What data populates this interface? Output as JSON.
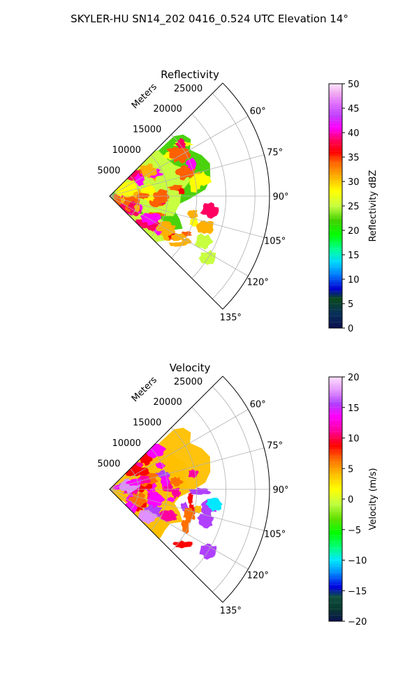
{
  "figure": {
    "suptitle": "SKYLER-HU  SN14_202  0416_0.524 UTC Elevation 14°"
  },
  "chart_data": [
    {
      "type": "heatmap",
      "projection": "polar-sector",
      "title": "Reflectivity",
      "range_label": "Meters",
      "range_ticks": [
        5000,
        10000,
        15000,
        20000,
        25000
      ],
      "range_max": 27500,
      "azimuth_range_deg": [
        45,
        135
      ],
      "azimuth_ticks": [
        "60°",
        "75°",
        "90°",
        "105°",
        "120°",
        "135°"
      ],
      "azimuth_tick_values": [
        60,
        75,
        90,
        105,
        120,
        135
      ],
      "grid": true,
      "colorbar": {
        "label": "Reflectivity dBZ",
        "min": 0,
        "max": 50,
        "ticks": [
          0,
          5,
          10,
          15,
          20,
          25,
          30,
          35,
          40,
          45,
          50
        ],
        "levels": 40,
        "colormap": "pyart_HomeyerRainbow-like",
        "stops": [
          [
            0,
            "#0a1050"
          ],
          [
            0.06,
            "#08305a"
          ],
          [
            0.12,
            "#0a4a1a"
          ],
          [
            0.16,
            "#0000d0"
          ],
          [
            0.22,
            "#0080ff"
          ],
          [
            0.27,
            "#00d8ff"
          ],
          [
            0.32,
            "#00ff99"
          ],
          [
            0.38,
            "#00ff00"
          ],
          [
            0.44,
            "#40d000"
          ],
          [
            0.5,
            "#c8ff40"
          ],
          [
            0.56,
            "#ffff00"
          ],
          [
            0.62,
            "#ffb000"
          ],
          [
            0.68,
            "#ff6000"
          ],
          [
            0.72,
            "#ff0000"
          ],
          [
            0.77,
            "#ff0060"
          ],
          [
            0.82,
            "#ff00ff"
          ],
          [
            0.87,
            "#c040ff"
          ],
          [
            0.92,
            "#e070ff"
          ],
          [
            0.96,
            "#f0a8f0"
          ],
          [
            1,
            "#ffe8ff"
          ]
        ]
      },
      "echo_summary": "echoes mostly 15-35 dBZ with cores to ~45 dBZ near radar and at ~100° az, 15-20 km"
    },
    {
      "type": "heatmap",
      "projection": "polar-sector",
      "title": "Velocity",
      "range_label": "Meters",
      "range_ticks": [
        5000,
        10000,
        15000,
        20000,
        25000
      ],
      "range_max": 27500,
      "azimuth_range_deg": [
        45,
        135
      ],
      "azimuth_ticks": [
        "60°",
        "75°",
        "90°",
        "105°",
        "120°",
        "135°"
      ],
      "azimuth_tick_values": [
        60,
        75,
        90,
        105,
        120,
        135
      ],
      "grid": true,
      "colorbar": {
        "label": "Velocity (m/s)",
        "min": -20,
        "max": 20,
        "ticks": [
          -20,
          -15,
          -10,
          -5,
          0,
          5,
          10,
          15,
          20
        ],
        "levels": 40,
        "colormap": "pyart_BuDRd-like",
        "stops": [
          [
            0,
            "#0a1050"
          ],
          [
            0.05,
            "#083a30"
          ],
          [
            0.1,
            "#105040"
          ],
          [
            0.14,
            "#0000e0"
          ],
          [
            0.2,
            "#0090ff"
          ],
          [
            0.25,
            "#00e8ff"
          ],
          [
            0.3,
            "#00ff80"
          ],
          [
            0.36,
            "#00ff00"
          ],
          [
            0.42,
            "#60e000"
          ],
          [
            0.48,
            "#c0ff40"
          ],
          [
            0.54,
            "#ffff00"
          ],
          [
            0.6,
            "#ffc000"
          ],
          [
            0.66,
            "#ff7000"
          ],
          [
            0.72,
            "#ff0000"
          ],
          [
            0.78,
            "#ff00a0"
          ],
          [
            0.84,
            "#ff00ff"
          ],
          [
            0.89,
            "#b040ff"
          ],
          [
            0.94,
            "#e090ff"
          ],
          [
            1,
            "#ffe0ff"
          ]
        ]
      },
      "echo_summary": "mostly 0 to +15 m/s, small inbound (-10 to -15 m/s) patch near 100° az, ~17 km"
    }
  ]
}
